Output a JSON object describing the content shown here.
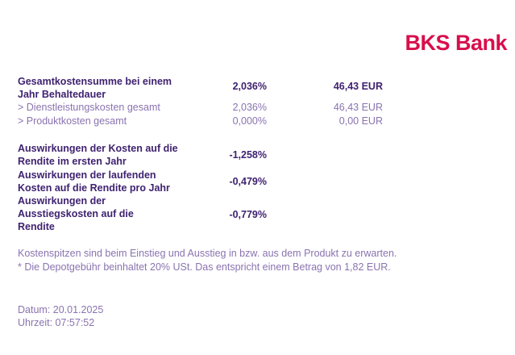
{
  "brand": {
    "logo_text": "BKS Bank"
  },
  "costs": {
    "total": {
      "label": "Gesamtkostensumme bei einem Jahr Behaltedauer",
      "pct": "2,036%",
      "amount": "46,43 EUR"
    },
    "items": [
      {
        "label": "> Dienstleistungskosten gesamt",
        "pct": "2,036%",
        "amount": "46,43 EUR"
      },
      {
        "label": "> Produktkosten gesamt",
        "pct": "0,000%",
        "amount": "0,00 EUR"
      }
    ]
  },
  "impacts": [
    {
      "label": "Auswirkungen der Kosten auf die Rendite im ersten Jahr",
      "pct": "-1,258%"
    },
    {
      "label": "Auswirkungen der laufenden Kosten auf die Rendite pro Jahr",
      "pct": "-0,479%"
    },
    {
      "label": "Auswirkungen der Ausstiegskosten auf die Rendite",
      "pct": "-0,779%"
    }
  ],
  "notes": [
    "Kostenspitzen sind beim Einstieg und Ausstieg in bzw. aus dem Produkt zu erwarten.",
    "* Die Depotgebühr beinhaltet 20% USt. Das entspricht einem Betrag von 1,82 EUR."
  ],
  "meta": {
    "date": "Datum: 20.01.2025",
    "time": "Uhrzeit: 07:57:52"
  }
}
